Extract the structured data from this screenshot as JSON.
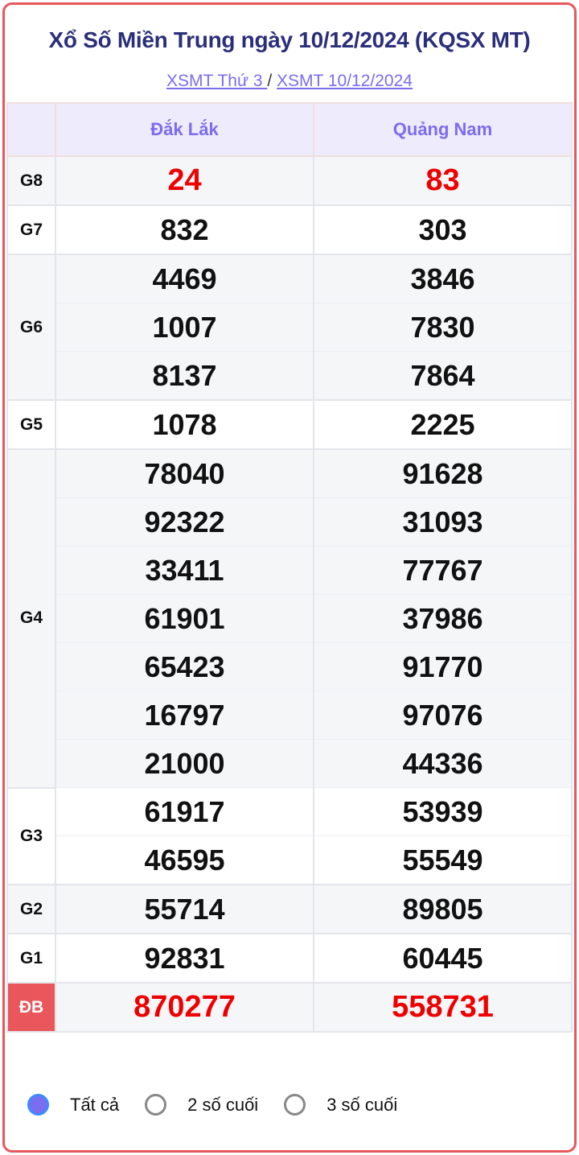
{
  "title": "Xổ Số Miền Trung ngày 10/12/2024 (KQSX MT)",
  "links": [
    {
      "label": "XSMT Thứ 3 "
    },
    {
      "label": "XSMT 10/12/2024"
    }
  ],
  "separator": "/",
  "columns": [
    "Đắk Lắk",
    "Quảng Nam"
  ],
  "prizes": [
    {
      "label": "G8",
      "rows": [
        [
          "24",
          "83"
        ]
      ],
      "highlight": true
    },
    {
      "label": "G7",
      "rows": [
        [
          "832",
          "303"
        ]
      ]
    },
    {
      "label": "G6",
      "rows": [
        [
          "4469",
          "3846"
        ],
        [
          "1007",
          "7830"
        ],
        [
          "8137",
          "7864"
        ]
      ]
    },
    {
      "label": "G5",
      "rows": [
        [
          "1078",
          "2225"
        ]
      ]
    },
    {
      "label": "G4",
      "rows": [
        [
          "78040",
          "91628"
        ],
        [
          "92322",
          "31093"
        ],
        [
          "33411",
          "77767"
        ],
        [
          "61901",
          "37986"
        ],
        [
          "65423",
          "91770"
        ],
        [
          "16797",
          "97076"
        ],
        [
          "21000",
          "44336"
        ]
      ]
    },
    {
      "label": "G3",
      "rows": [
        [
          "61917",
          "53939"
        ],
        [
          "46595",
          "55549"
        ]
      ]
    },
    {
      "label": "G2",
      "rows": [
        [
          "55714",
          "89805"
        ]
      ]
    },
    {
      "label": "G1",
      "rows": [
        [
          "92831",
          "60445"
        ]
      ]
    },
    {
      "label": "ĐB",
      "rows": [
        [
          "870277",
          "558731"
        ]
      ],
      "highlight": true,
      "special": true
    }
  ],
  "filters": [
    {
      "label": "Tất cả",
      "selected": true
    },
    {
      "label": "2 số cuối",
      "selected": false
    },
    {
      "label": "3 số cuối",
      "selected": false
    }
  ],
  "colors": {
    "accent": "#7b6cf0",
    "title": "#2b2f7a",
    "highlight": "#ee0000",
    "border": "#e9575c"
  }
}
